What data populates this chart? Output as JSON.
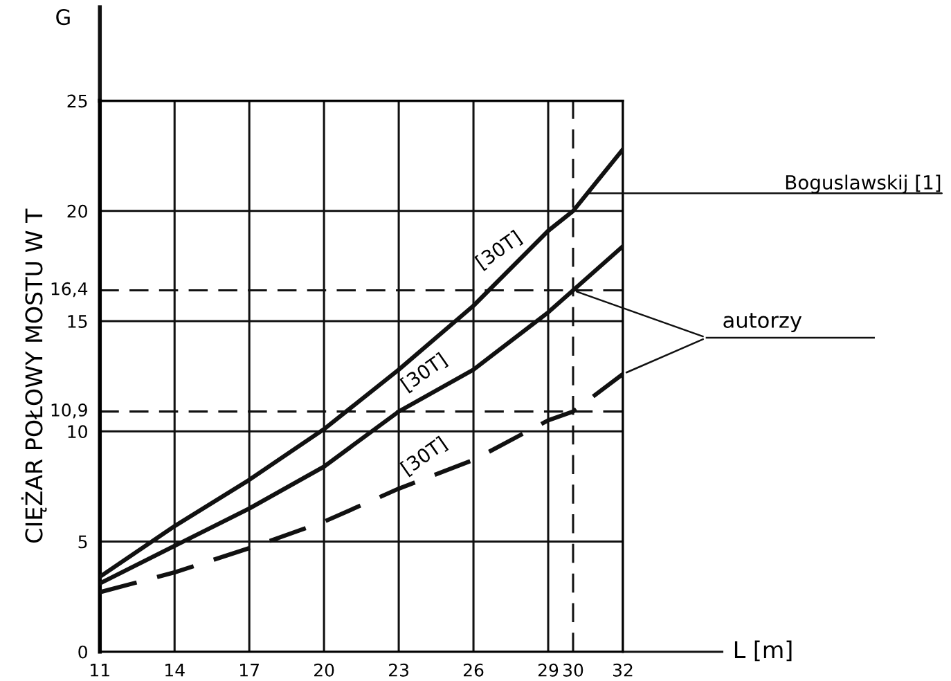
{
  "chart_data": {
    "type": "line",
    "ylabel": "CIĘŻAR POŁOWY MOSTU W T",
    "xlabel": "L [m]",
    "x": [
      11,
      14,
      17,
      20,
      23,
      26,
      29,
      30,
      32
    ],
    "series": [
      {
        "name": "Boguslawskij [1]",
        "color": "#111111",
        "line_style": "solid",
        "values": [
          3.4,
          5.7,
          7.8,
          10.1,
          12.8,
          15.7,
          19.1,
          20.0,
          22.8
        ]
      },
      {
        "color": "#111111",
        "line_style": "solid",
        "values": [
          3.1,
          4.8,
          6.5,
          8.4,
          10.9,
          12.8,
          15.4,
          16.4,
          18.4
        ]
      },
      {
        "color": "#111111",
        "line_style": "dashed",
        "values": [
          2.7,
          3.6,
          4.7,
          5.9,
          7.4,
          8.7,
          10.5,
          10.9,
          12.6
        ]
      }
    ],
    "xlim": [
      11,
      32
    ],
    "ylim": [
      0,
      25
    ],
    "xticks": [
      11,
      14,
      17,
      20,
      23,
      26,
      29,
      32
    ],
    "yticks": [
      0,
      5,
      10,
      15,
      20,
      25
    ],
    "grid": true,
    "marker": "none",
    "ref_lines": [
      {
        "axis": "y",
        "value": 16.4,
        "label": "16,4",
        "line_style": "dashed"
      },
      {
        "axis": "y",
        "value": 10.9,
        "label": "10,9",
        "line_style": "dashed"
      },
      {
        "axis": "x",
        "value": 30,
        "label": "30",
        "line_style": "dashed"
      }
    ],
    "annotations": [
      "G",
      {
        "text": "autorzy",
        "x": 30,
        "y": 16.4
      },
      "[30T]",
      "[30T]",
      "[30T]"
    ]
  }
}
